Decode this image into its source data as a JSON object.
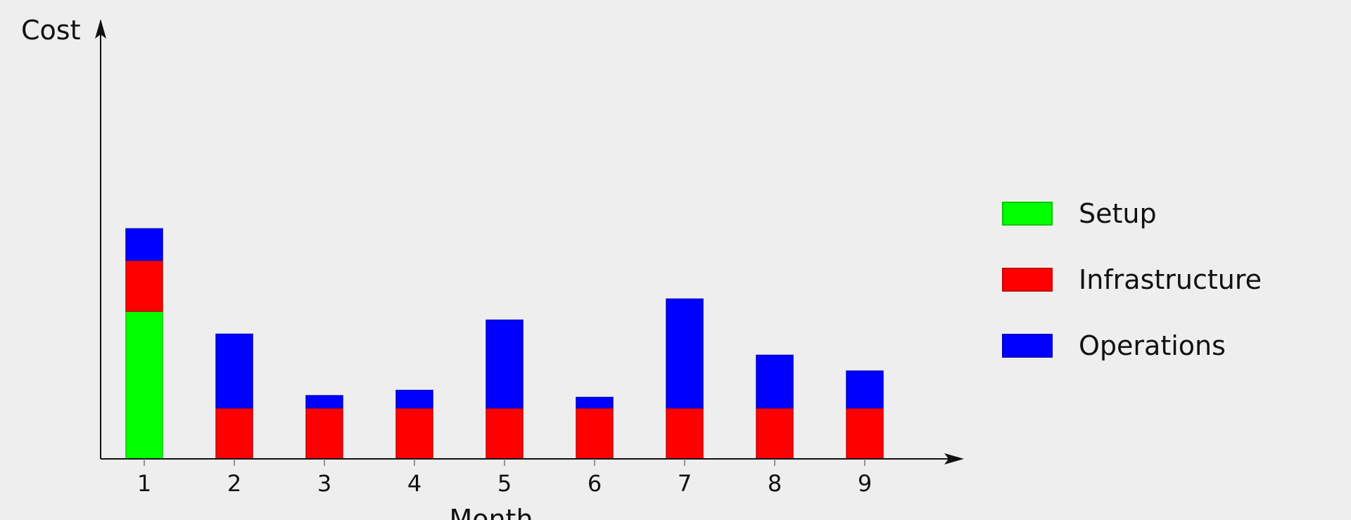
{
  "chart_data": {
    "type": "bar",
    "stacked": true,
    "categories": [
      "1",
      "2",
      "3",
      "4",
      "5",
      "6",
      "7",
      "8",
      "9"
    ],
    "series": [
      {
        "name": "Setup",
        "color": "#00ff00",
        "values": [
          8.4,
          0,
          0,
          0,
          0,
          0,
          0,
          0,
          0
        ]
      },
      {
        "name": "Infrastructure",
        "color": "#ff0000",
        "values": [
          2.9,
          2.9,
          2.9,
          2.9,
          2.9,
          2.9,
          2.9,
          2.9,
          2.9
        ]
      },
      {
        "name": "Operations",
        "color": "#0000ff",
        "values": [
          1.8,
          4.2,
          0.7,
          1.0,
          5.0,
          0.6,
          6.2,
          3.0,
          2.1
        ]
      }
    ],
    "xlabel": "Month",
    "ylabel": "Cost",
    "ylim": [
      0,
      20
    ],
    "grid": false,
    "y_tick_labels_shown": false,
    "legend_position": "right"
  }
}
